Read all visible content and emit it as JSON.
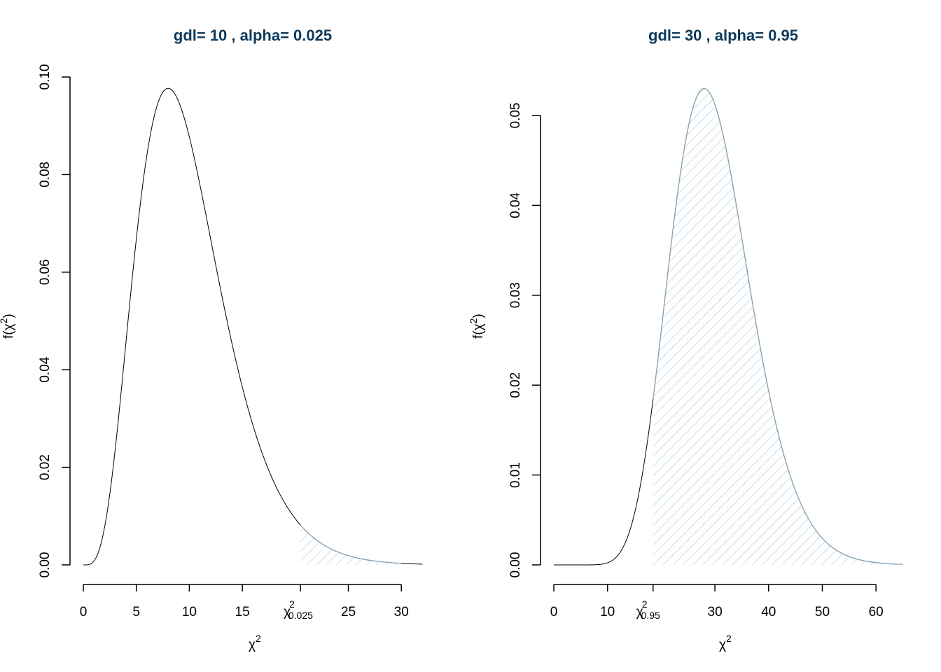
{
  "chart_data": [
    {
      "type": "area",
      "title": "gdl= 10 , alpha= 0.025",
      "df": 10,
      "alpha": 0.025,
      "critical_value": 20.48,
      "critical_label": "χ",
      "critical_sup": "2",
      "critical_sub": "0.025",
      "xlabel": "χ",
      "xlabel_sup": "2",
      "ylabel": "f(χ",
      "ylabel_sup": "2",
      "ylabel_end": ")",
      "xlim": [
        0,
        32
      ],
      "ylim": [
        0,
        0.1
      ],
      "xticks": [
        0,
        5,
        10,
        15,
        25,
        30
      ],
      "yticks": [
        "0.00",
        "0.02",
        "0.04",
        "0.06",
        "0.08",
        "0.10"
      ],
      "shade_from": 20.48,
      "shade_to": 30,
      "grid": false
    },
    {
      "type": "area",
      "title": "gdl= 30 , alpha= 0.95",
      "df": 30,
      "alpha": 0.95,
      "critical_value": 18.49,
      "critical_label": "χ",
      "critical_sup": "2",
      "critical_sub": "0.95",
      "xlabel": "χ",
      "xlabel_sup": "2",
      "ylabel": "f(χ",
      "ylabel_sup": "2",
      "ylabel_end": ")",
      "xlim": [
        0,
        65
      ],
      "ylim": [
        0,
        0.05
      ],
      "xticks": [
        0,
        10,
        30,
        40,
        50,
        60
      ],
      "yticks": [
        "0.00",
        "0.01",
        "0.02",
        "0.03",
        "0.04",
        "0.05"
      ],
      "shade_from": 18.49,
      "shade_to": 65,
      "grid": false
    }
  ],
  "colors": {
    "title": "#0d3a5c",
    "hatch": "#a9c9dc",
    "curve": "#000000"
  }
}
